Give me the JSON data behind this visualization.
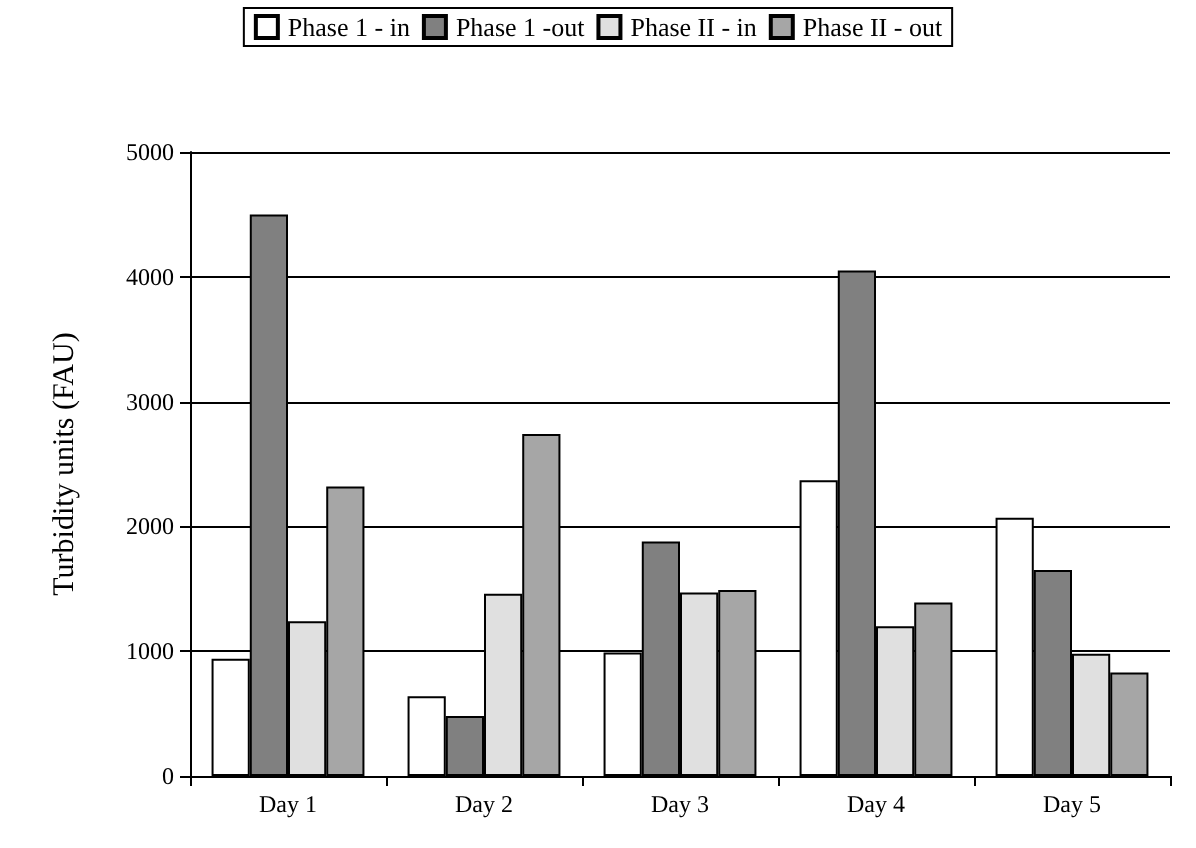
{
  "chart_data": {
    "type": "bar",
    "ylabel": "Turbidity units (FAU)",
    "categories": [
      "Day 1",
      "Day 2",
      "Day 3",
      "Day 4",
      "Day 5"
    ],
    "series": [
      {
        "name": "Phase 1 - in",
        "color": "#ffffff",
        "values": [
          940,
          640,
          990,
          2370,
          2070
        ]
      },
      {
        "name": "Phase 1 -out",
        "color": "#808080",
        "values": [
          4500,
          480,
          1880,
          4050,
          1650
        ]
      },
      {
        "name": "Phase II - in",
        "color": "#e0e0e0",
        "values": [
          1240,
          1460,
          1470,
          1200,
          980
        ]
      },
      {
        "name": "Phase II - out",
        "color": "#a6a6a6",
        "values": [
          2320,
          2740,
          1490,
          1390,
          830
        ]
      }
    ],
    "ylim": [
      0,
      5000
    ],
    "yticks": [
      0,
      1000,
      2000,
      3000,
      4000,
      5000
    ],
    "grid": "y",
    "legend": "top"
  }
}
